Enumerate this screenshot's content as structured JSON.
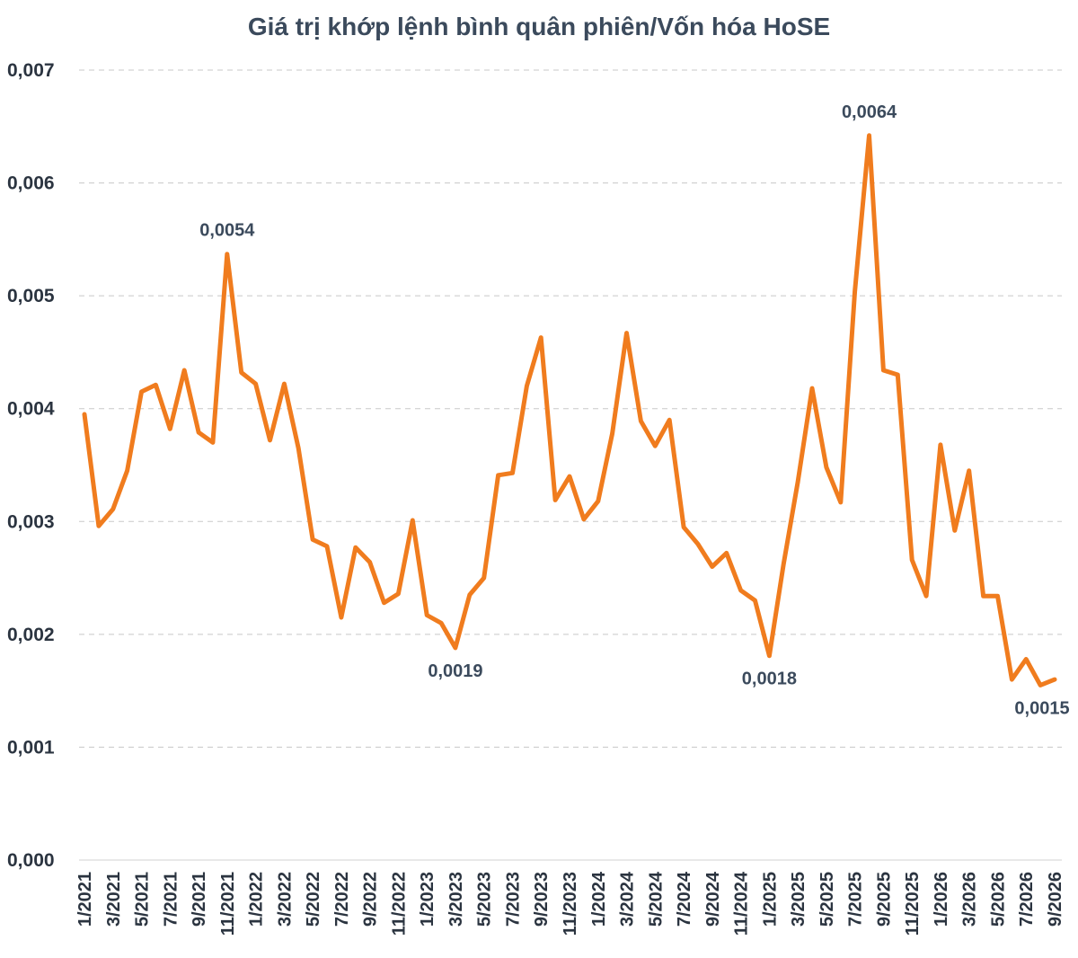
{
  "chart_data": {
    "type": "line",
    "title": "Giá trị khớp lệnh bình quân phiên/Vốn hóa HoSE",
    "xlabel": "",
    "ylabel": "",
    "ylim": [
      0,
      0.007
    ],
    "grid": true,
    "line_color": "#f07c1e",
    "y_ticks": [
      "0,000",
      "0,001",
      "0,002",
      "0,003",
      "0,004",
      "0,005",
      "0,006",
      "0,007"
    ],
    "x_tick_labels": [
      "1/2021",
      "3/2021",
      "5/2021",
      "7/2021",
      "9/2021",
      "11/2021",
      "1/2022",
      "3/2022",
      "5/2022",
      "7/2022",
      "9/2022",
      "11/2022",
      "1/2023",
      "3/2023",
      "5/2023",
      "7/2023",
      "9/2023",
      "11/2023",
      "1/2024",
      "3/2024",
      "5/2024",
      "7/2024",
      "9/2024",
      "11/2024",
      "1/2025",
      "3/2025",
      "5/2025",
      "7/2025",
      "9/2025",
      "11/2025",
      "1/2026",
      "3/2026",
      "5/2026",
      "7/2026",
      "9/2026"
    ],
    "values": [
      0.00395,
      0.00296,
      0.00311,
      0.00345,
      0.00415,
      0.00421,
      0.00382,
      0.00434,
      0.00379,
      0.0037,
      0.00537,
      0.00432,
      0.00422,
      0.00372,
      0.00422,
      0.00365,
      0.00284,
      0.00278,
      0.00215,
      0.00277,
      0.00264,
      0.00228,
      0.00236,
      0.00301,
      0.00217,
      0.0021,
      0.00188,
      0.00235,
      0.0025,
      0.00341,
      0.00343,
      0.0042,
      0.00463,
      0.00319,
      0.0034,
      0.00302,
      0.00318,
      0.00378,
      0.00467,
      0.00389,
      0.00367,
      0.0039,
      0.00295,
      0.0028,
      0.0026,
      0.00272,
      0.00239,
      0.0023,
      0.00181,
      0.00262,
      0.00335,
      0.00418,
      0.00348,
      0.00317,
      0.00504,
      0.00642,
      0.00434,
      0.0043,
      0.00266,
      0.00234,
      0.00368,
      0.00292,
      0.00345,
      0.00234,
      0.00234,
      0.0016,
      0.00178,
      0.00155,
      0.0016
    ],
    "annotations": [
      {
        "index": 10,
        "text": "0,0054",
        "position": "above"
      },
      {
        "index": 26,
        "text": "0,0019",
        "position": "below"
      },
      {
        "index": 48,
        "text": "0,0018",
        "position": "below"
      },
      {
        "index": 55,
        "text": "0,0064",
        "position": "above"
      },
      {
        "index": 67,
        "text": "0,0015",
        "position": "below"
      }
    ]
  }
}
